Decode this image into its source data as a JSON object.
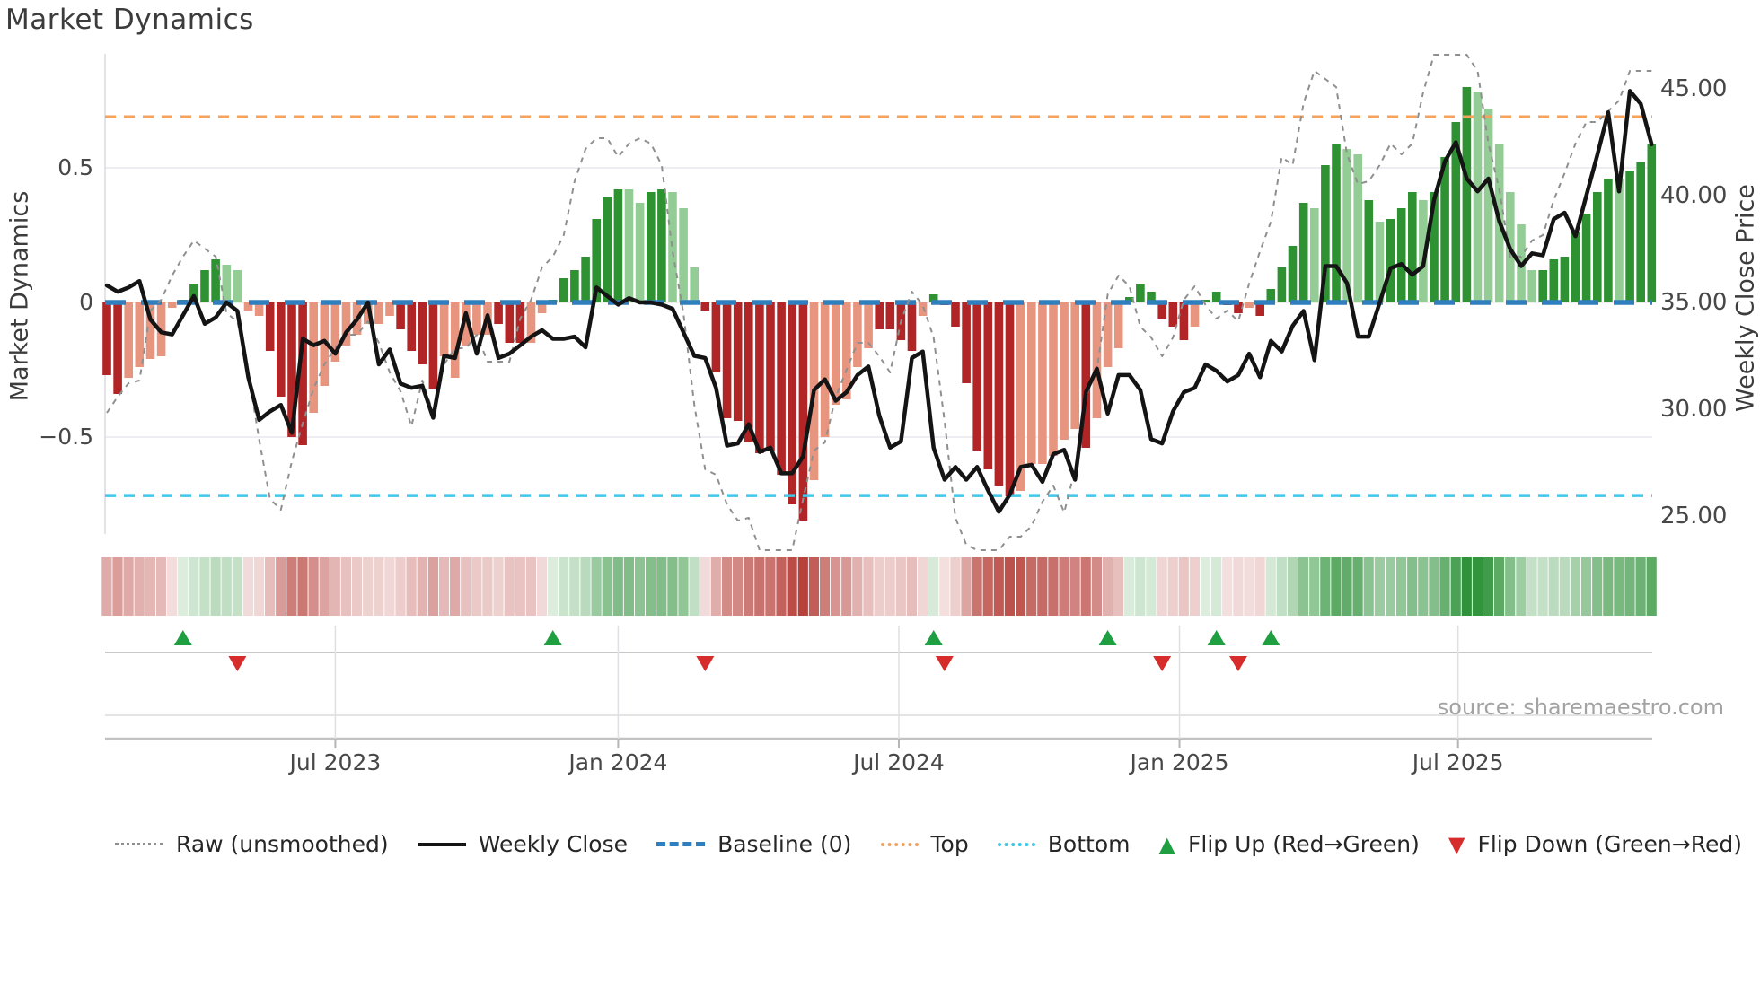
{
  "title": "Market Dynamics",
  "source": "source: sharemaestro.com",
  "left_axis": {
    "title": "Market Dynamics",
    "ticks": [
      {
        "label": "0.5",
        "value": 0.5
      },
      {
        "label": "0",
        "value": 0
      },
      {
        "label": "−0.5",
        "value": -0.5
      }
    ]
  },
  "right_axis": {
    "title": "Weekly Close Price",
    "ticks": [
      {
        "label": "45.00",
        "value": 45
      },
      {
        "label": "40.00",
        "value": 40
      },
      {
        "label": "35.00",
        "value": 35
      },
      {
        "label": "30.00",
        "value": 30
      },
      {
        "label": "25.00",
        "value": 25
      }
    ]
  },
  "x_axis": {
    "ticks": [
      {
        "label": "Jul 2023",
        "week": 21.0
      },
      {
        "label": "Jan 2024",
        "week": 47.0
      },
      {
        "label": "Jul 2024",
        "week": 72.8
      },
      {
        "label": "Jan 2025",
        "week": 98.6
      },
      {
        "label": "Jul 2025",
        "week": 124.2
      }
    ]
  },
  "legend": [
    {
      "label": "Raw (unsmoothed)",
      "glyph": "dotted-gray",
      "color": "#8f8f8f"
    },
    {
      "label": "Weekly Close",
      "glyph": "solid-black",
      "color": "#141414"
    },
    {
      "label": "Baseline (0)",
      "glyph": "dashed-blue",
      "color": "#2f7ebe"
    },
    {
      "label": "Top",
      "glyph": "dotted-orange",
      "color": "#f5a35c"
    },
    {
      "label": "Bottom",
      "glyph": "dotted-cyan",
      "color": "#3fc8e9"
    },
    {
      "label": "Flip Up (Red→Green)",
      "glyph": "triangle-up",
      "color": "#1f9e42"
    },
    {
      "label": "Flip Down (Green→Red)",
      "glyph": "triangle-down",
      "color": "#d62c2c"
    }
  ],
  "colors": {
    "bar_pos_dark": "#2e9233",
    "bar_pos_light": "#94cc96",
    "bar_neg_dark": "#b22527",
    "bar_neg_light": "#e89580",
    "weekly_close_line": "#141414",
    "raw_line": "#8f8f8f",
    "baseline": "#2f7ebe",
    "top_line": "#f5a35c",
    "bottom_line": "#3fc8e9",
    "grid": "#e9e9ee",
    "flip_up": "#1f9e42",
    "flip_down": "#d62c2c",
    "heat_pos_deep": "#2f923a",
    "heat_neg_deep": "#b7423c"
  },
  "chart_data": {
    "type": "combo-bar-line",
    "title": "Market Dynamics",
    "n_weeks": 143,
    "baseline": 0,
    "top_line": 0.69,
    "bottom_line": -0.717,
    "left_ylim": [
      -0.92,
      0.92
    ],
    "right_ylim": [
      24.0,
      46.6
    ],
    "grid_values": [
      0.5,
      0,
      -0.5
    ],
    "oscillator": [
      -0.27,
      -0.34,
      -0.28,
      -0.24,
      -0.21,
      -0.2,
      -0.02,
      0.01,
      0.07,
      0.12,
      0.16,
      0.14,
      0.12,
      -0.03,
      -0.05,
      -0.18,
      -0.35,
      -0.5,
      -0.53,
      -0.41,
      -0.31,
      -0.22,
      -0.16,
      -0.12,
      -0.08,
      -0.08,
      -0.05,
      -0.1,
      -0.18,
      -0.23,
      -0.32,
      -0.2,
      -0.28,
      -0.16,
      -0.12,
      -0.12,
      -0.08,
      -0.15,
      -0.15,
      -0.15,
      -0.04,
      0.01,
      0.09,
      0.12,
      0.17,
      0.31,
      0.39,
      0.42,
      0.42,
      0.37,
      0.41,
      0.42,
      0.41,
      0.35,
      0.13,
      -0.03,
      -0.26,
      -0.43,
      -0.44,
      -0.52,
      -0.56,
      -0.55,
      -0.64,
      -0.75,
      -0.81,
      -0.66,
      -0.5,
      -0.38,
      -0.36,
      -0.24,
      -0.17,
      -0.1,
      -0.1,
      -0.14,
      -0.18,
      -0.05,
      0.03,
      -0.01,
      -0.09,
      -0.3,
      -0.55,
      -0.62,
      -0.68,
      -0.72,
      -0.7,
      -0.6,
      -0.6,
      -0.57,
      -0.51,
      -0.47,
      -0.54,
      -0.43,
      -0.24,
      -0.17,
      0.02,
      0.07,
      0.04,
      -0.06,
      -0.09,
      -0.14,
      -0.09,
      0.01,
      0.04,
      -0.01,
      -0.04,
      -0.02,
      -0.05,
      0.05,
      0.13,
      0.21,
      0.37,
      0.35,
      0.51,
      0.59,
      0.57,
      0.55,
      0.38,
      0.3,
      0.31,
      0.35,
      0.41,
      0.38,
      0.41,
      0.54,
      0.67,
      0.8,
      0.78,
      0.72,
      0.59,
      0.41,
      0.29,
      0.12,
      0.12,
      0.16,
      0.17,
      0.26,
      0.33,
      0.41,
      0.46,
      0.46,
      0.49,
      0.52,
      0.59
    ],
    "oscillator_shade": [
      "d",
      "d",
      "l",
      "l",
      "l",
      "l",
      "l",
      "d",
      "d",
      "d",
      "d",
      "l",
      "l",
      "l",
      "l",
      "d",
      "d",
      "d",
      "d",
      "l",
      "l",
      "l",
      "l",
      "l",
      "l",
      "l",
      "l",
      "d",
      "d",
      "d",
      "d",
      "l",
      "l",
      "l",
      "l",
      "l",
      "d",
      "d",
      "d",
      "l",
      "l",
      "d",
      "d",
      "d",
      "d",
      "d",
      "d",
      "d",
      "l",
      "l",
      "d",
      "d",
      "l",
      "l",
      "l",
      "d",
      "d",
      "d",
      "d",
      "d",
      "d",
      "d",
      "d",
      "d",
      "d",
      "l",
      "l",
      "l",
      "l",
      "l",
      "l",
      "d",
      "d",
      "d",
      "d",
      "l",
      "d",
      "d",
      "d",
      "d",
      "d",
      "d",
      "d",
      "d",
      "l",
      "l",
      "l",
      "l",
      "l",
      "l",
      "d",
      "l",
      "l",
      "l",
      "d",
      "d",
      "d",
      "d",
      "d",
      "d",
      "l",
      "d",
      "d",
      "d",
      "d",
      "l",
      "d",
      "d",
      "d",
      "d",
      "d",
      "l",
      "d",
      "d",
      "l",
      "l",
      "d",
      "l",
      "d",
      "d",
      "d",
      "l",
      "d",
      "d",
      "d",
      "d",
      "l",
      "l",
      "l",
      "l",
      "l",
      "l",
      "d",
      "d",
      "d",
      "d",
      "d",
      "d",
      "d",
      "l",
      "d",
      "d",
      "d"
    ],
    "weekly_close": [
      35.8,
      35.5,
      35.7,
      36.0,
      34.2,
      33.6,
      33.5,
      34.4,
      35.3,
      34.0,
      34.3,
      35.0,
      34.6,
      31.5,
      29.5,
      29.9,
      30.2,
      28.9,
      33.3,
      33.0,
      33.2,
      32.6,
      33.6,
      34.2,
      35.0,
      32.1,
      32.8,
      31.2,
      31.0,
      31.1,
      29.6,
      32.5,
      32.4,
      34.5,
      32.6,
      34.4,
      32.4,
      32.6,
      33.0,
      33.4,
      33.7,
      33.3,
      33.3,
      33.4,
      32.9,
      35.7,
      35.3,
      34.9,
      35.2,
      35.0,
      35.0,
      34.9,
      34.7,
      33.6,
      32.5,
      32.4,
      31.0,
      28.3,
      28.4,
      29.3,
      28.0,
      28.2,
      27.0,
      27.0,
      27.8,
      30.9,
      31.4,
      30.4,
      30.8,
      31.6,
      32.0,
      29.7,
      28.2,
      28.5,
      32.4,
      32.7,
      28.2,
      26.7,
      27.3,
      26.7,
      27.3,
      26.2,
      25.2,
      26.0,
      27.3,
      27.4,
      26.6,
      27.9,
      28.1,
      26.7,
      30.8,
      31.9,
      29.8,
      31.6,
      31.6,
      30.9,
      28.6,
      28.4,
      29.9,
      30.8,
      31.0,
      32.1,
      31.8,
      31.3,
      31.6,
      32.6,
      31.5,
      33.2,
      32.7,
      33.9,
      34.6,
      32.3,
      36.7,
      36.7,
      35.9,
      33.4,
      33.4,
      35.0,
      36.6,
      36.8,
      36.3,
      36.7,
      39.8,
      41.6,
      42.5,
      40.8,
      40.2,
      40.8,
      38.8,
      37.5,
      36.7,
      37.3,
      37.2,
      38.9,
      39.2,
      38.1,
      40.0,
      41.9,
      43.9,
      40.2,
      44.9,
      44.3,
      42.4
    ],
    "raw_unsmoothed": [
      -0.41,
      -0.35,
      -0.3,
      -0.29,
      -0.03,
      0.01,
      0.1,
      0.17,
      0.23,
      0.2,
      0.17,
      -0.04,
      -0.07,
      -0.26,
      -0.51,
      -0.73,
      -0.77,
      -0.59,
      -0.45,
      -0.32,
      -0.23,
      -0.17,
      -0.12,
      -0.12,
      -0.07,
      -0.15,
      -0.26,
      -0.33,
      -0.46,
      -0.29,
      -0.41,
      -0.23,
      -0.17,
      -0.17,
      -0.12,
      -0.22,
      -0.22,
      -0.22,
      -0.06,
      0.01,
      0.13,
      0.17,
      0.25,
      0.45,
      0.57,
      0.61,
      0.61,
      0.54,
      0.59,
      0.61,
      0.59,
      0.51,
      0.19,
      -0.04,
      -0.38,
      -0.62,
      -0.64,
      -0.75,
      -0.81,
      -0.8,
      -0.92,
      -0.92,
      -0.92,
      -0.92,
      -0.73,
      -0.55,
      -0.52,
      -0.35,
      -0.25,
      -0.15,
      -0.15,
      -0.2,
      -0.26,
      -0.07,
      0.04,
      -0.01,
      -0.13,
      -0.44,
      -0.8,
      -0.9,
      -0.92,
      -0.92,
      -0.92,
      -0.87,
      -0.87,
      -0.83,
      -0.74,
      -0.68,
      -0.78,
      -0.62,
      -0.35,
      -0.25,
      0.03,
      0.1,
      0.06,
      -0.09,
      -0.13,
      -0.2,
      -0.13,
      0.01,
      0.06,
      -0.01,
      -0.06,
      -0.03,
      -0.07,
      0.07,
      0.19,
      0.3,
      0.54,
      0.51,
      0.74,
      0.86,
      0.83,
      0.8,
      0.55,
      0.44,
      0.45,
      0.51,
      0.59,
      0.55,
      0.59,
      0.78,
      0.92,
      0.92,
      0.92,
      0.92,
      0.86,
      0.59,
      0.42,
      0.17,
      0.17,
      0.23,
      0.25,
      0.38,
      0.48,
      0.59,
      0.67,
      0.67,
      0.71,
      0.75,
      0.86,
      0.86,
      0.86
    ],
    "flip_up_weeks": [
      7,
      41,
      76,
      92,
      102,
      107
    ],
    "flip_down_weeks": [
      12,
      55,
      77,
      97,
      104
    ]
  }
}
